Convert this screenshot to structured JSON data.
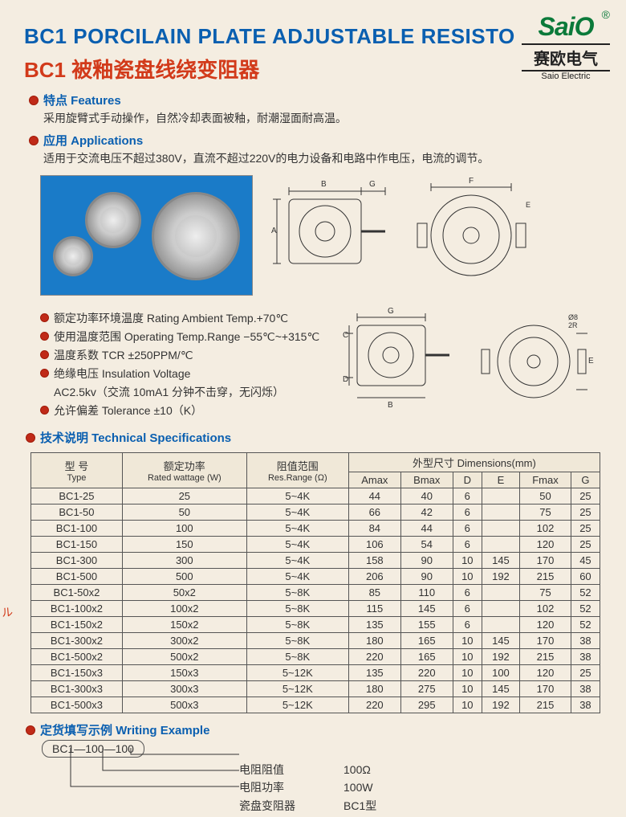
{
  "logo": {
    "brand": "SaiO",
    "registered": "®",
    "cn": "赛欧电气",
    "en": "Saio Electric"
  },
  "title": {
    "en": "BC1 PORCILAIN PLATE ADJUSTABLE RESISTO",
    "cn": "BC1  被釉瓷盘线绕变阻器"
  },
  "features": {
    "head": "特点 Features",
    "body": "采用旋臂式手动操作，自然冷却表面被釉，耐潮湿面耐高温。"
  },
  "applications": {
    "head": "应用 Applications",
    "body": "适用于交流电压不超过380V，直流不超过220V的电力设备和电路中作电压，电流的调节。"
  },
  "spec_lines": [
    "额定功率环境温度 Rating Ambient Temp.+70℃",
    "使用温度范围 Operating Temp.Range −55℃~+315℃",
    "温度系数 TCR  ±250PPM/℃",
    "绝缘电压 Insulation Voltage",
    "AC2.5kv（交流 10mA1 分钟不击穿，无闪烁）",
    "允许偏差 Tolerance ±10（K）"
  ],
  "tech_head": "技术说明 Technical Specifications",
  "table": {
    "headers": {
      "type": "型 号",
      "type_sub": "Type",
      "wattage": "额定功率",
      "wattage_sub": "Rated wattage (W)",
      "range": "阻值范围",
      "range_sub": "Res.Range (Ω)",
      "dim": "外型尺寸 Dimensions(mm)",
      "cols": [
        "Amax",
        "Bmax",
        "D",
        "E",
        "Fmax",
        "G"
      ]
    },
    "rows": [
      [
        "BC1-25",
        "25",
        "5~4K",
        "44",
        "40",
        "6",
        "",
        "50",
        "25"
      ],
      [
        "BC1-50",
        "50",
        "5~4K",
        "66",
        "42",
        "6",
        "",
        "75",
        "25"
      ],
      [
        "BC1-100",
        "100",
        "5~4K",
        "84",
        "44",
        "6",
        "",
        "102",
        "25"
      ],
      [
        "BC1-150",
        "150",
        "5~4K",
        "106",
        "54",
        "6",
        "",
        "120",
        "25"
      ],
      [
        "BC1-300",
        "300",
        "5~4K",
        "158",
        "90",
        "10",
        "145",
        "170",
        "45"
      ],
      [
        "BC1-500",
        "500",
        "5~4K",
        "206",
        "90",
        "10",
        "192",
        "215",
        "60"
      ],
      [
        "BC1-50x2",
        "50x2",
        "5~8K",
        "85",
        "110",
        "6",
        "",
        "75",
        "52"
      ],
      [
        "BC1-100x2",
        "100x2",
        "5~8K",
        "115",
        "145",
        "6",
        "",
        "102",
        "52"
      ],
      [
        "BC1-150x2",
        "150x2",
        "5~8K",
        "135",
        "155",
        "6",
        "",
        "120",
        "52"
      ],
      [
        "BC1-300x2",
        "300x2",
        "5~8K",
        "180",
        "165",
        "10",
        "145",
        "170",
        "38"
      ],
      [
        "BC1-500x2",
        "500x2",
        "5~8K",
        "220",
        "165",
        "10",
        "192",
        "215",
        "38"
      ],
      [
        "BC1-150x3",
        "150x3",
        "5~12K",
        "135",
        "220",
        "10",
        "100",
        "120",
        "25"
      ],
      [
        "BC1-300x3",
        "300x3",
        "5~12K",
        "180",
        "275",
        "10",
        "145",
        "170",
        "38"
      ],
      [
        "BC1-500x3",
        "500x3",
        "5~12K",
        "220",
        "295",
        "10",
        "192",
        "215",
        "38"
      ]
    ]
  },
  "writing": {
    "head": "定货填写示例  Writing Example",
    "box": "BC1—100—100",
    "rows": [
      {
        "label": "电阻阻值",
        "val": "100Ω"
      },
      {
        "label": "电阻功率",
        "val": "100W"
      },
      {
        "label": "瓷盘变阻器",
        "val": "BC1型"
      }
    ]
  },
  "diagram_labels": [
    "B",
    "G",
    "F",
    "G",
    "C",
    "D",
    "A",
    "E",
    "Ø8",
    "2R"
  ],
  "colors": {
    "bg": "#f4ede1",
    "title_en": "#0a5fb0",
    "title_cn": "#d23a1a",
    "bullet": "#c02a18",
    "logo_green": "#0b7a3a",
    "border": "#555",
    "text": "#333",
    "photo_bg": "#1a7bc8"
  },
  "red_mark": "ル"
}
